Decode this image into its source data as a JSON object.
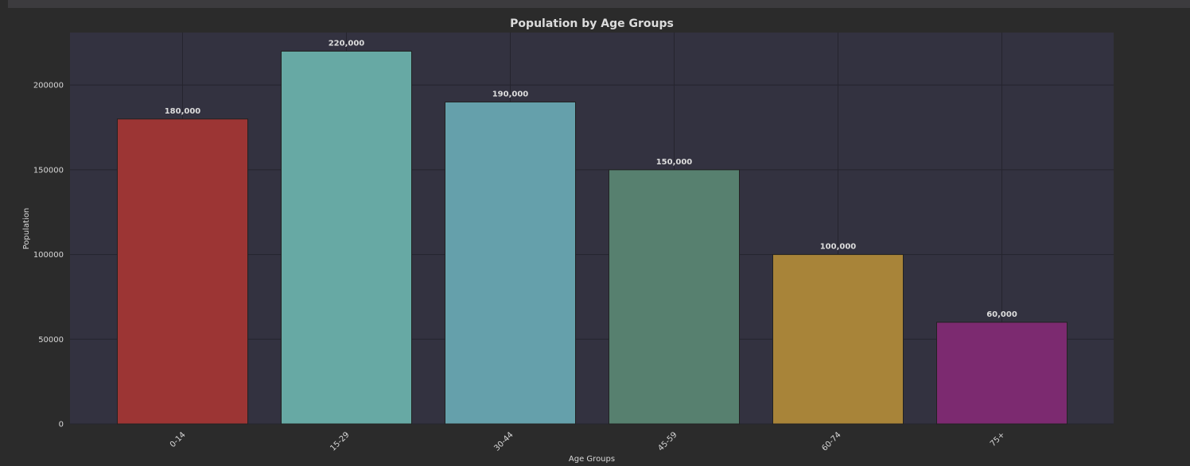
{
  "chart_data": {
    "type": "bar",
    "title": "Population by Age Groups",
    "xlabel": "Age Groups",
    "ylabel": "Population",
    "categories": [
      "0-14",
      "15-29",
      "30-44",
      "45-59",
      "60-74",
      "75+"
    ],
    "values": [
      180000,
      220000,
      190000,
      150000,
      100000,
      60000
    ],
    "data_labels": [
      "180,000",
      "220,000",
      "190,000",
      "150,000",
      "100,000",
      "60,000"
    ],
    "yticks": [
      0,
      50000,
      100000,
      150000,
      200000
    ],
    "ylim": [
      0,
      231000
    ],
    "grid": true,
    "colors": [
      "#9c3534",
      "#67a9a4",
      "#65a0ab",
      "#57806f",
      "#a88439",
      "#7c2a70"
    ],
    "plot_background": "#333240"
  }
}
